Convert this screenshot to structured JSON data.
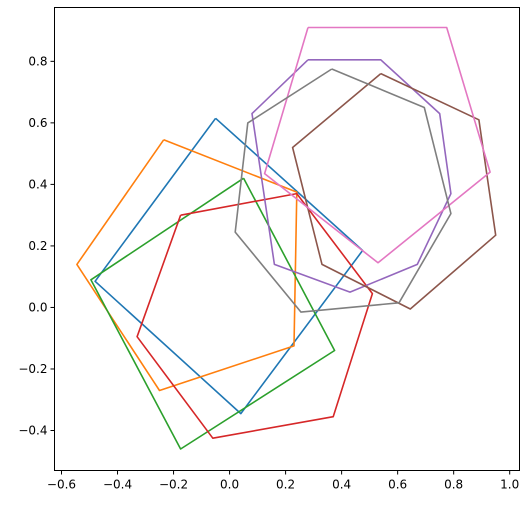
{
  "chart_data": {
    "type": "line",
    "title": "",
    "xlabel": "",
    "ylabel": "",
    "xlim": [
      -0.625,
      1.035
    ],
    "ylim": [
      -0.53,
      0.975
    ],
    "xticks": [
      -0.6,
      -0.4,
      -0.2,
      0.0,
      0.2,
      0.4,
      0.6,
      0.8,
      1.0
    ],
    "yticks": [
      -0.4,
      -0.2,
      0.0,
      0.2,
      0.4,
      0.6,
      0.8
    ],
    "xtick_labels": [
      "−0.6",
      "−0.4",
      "−0.2",
      "0.0",
      "0.2",
      "0.4",
      "0.6",
      "0.8",
      "1.0"
    ],
    "ytick_labels": [
      "−0.4",
      "−0.2",
      "0.0",
      "0.2",
      "0.4",
      "0.6",
      "0.8"
    ],
    "grid": false,
    "legend": "none",
    "series": [
      {
        "color": "#1f77b4",
        "points": [
          [
            -0.05,
            0.615
          ],
          [
            0.475,
            0.185
          ],
          [
            0.04,
            -0.345
          ],
          [
            -0.48,
            0.085
          ],
          [
            -0.05,
            0.615
          ]
        ]
      },
      {
        "color": "#ff7f0e",
        "points": [
          [
            -0.235,
            0.545
          ],
          [
            0.24,
            0.375
          ],
          [
            0.23,
            -0.125
          ],
          [
            -0.25,
            -0.27
          ],
          [
            -0.545,
            0.14
          ],
          [
            -0.235,
            0.545
          ]
        ]
      },
      {
        "color": "#2ca02c",
        "points": [
          [
            0.05,
            0.42
          ],
          [
            0.375,
            -0.14
          ],
          [
            -0.175,
            -0.46
          ],
          [
            -0.495,
            0.09
          ],
          [
            0.05,
            0.42
          ]
        ]
      },
      {
        "color": "#d62728",
        "points": [
          [
            -0.175,
            0.3
          ],
          [
            0.24,
            0.37
          ],
          [
            0.51,
            0.045
          ],
          [
            0.37,
            -0.355
          ],
          [
            -0.06,
            -0.425
          ],
          [
            -0.33,
            -0.095
          ],
          [
            -0.175,
            0.3
          ]
        ]
      },
      {
        "color": "#9467bd",
        "points": [
          [
            0.28,
            0.805
          ],
          [
            0.54,
            0.805
          ],
          [
            0.75,
            0.63
          ],
          [
            0.79,
            0.37
          ],
          [
            0.67,
            0.14
          ],
          [
            0.43,
            0.05
          ],
          [
            0.16,
            0.14
          ],
          [
            0.08,
            0.63
          ],
          [
            0.28,
            0.805
          ]
        ]
      },
      {
        "color": "#8c564b",
        "points": [
          [
            0.54,
            0.76
          ],
          [
            0.89,
            0.61
          ],
          [
            0.95,
            0.235
          ],
          [
            0.645,
            -0.005
          ],
          [
            0.33,
            0.14
          ],
          [
            0.225,
            0.52
          ],
          [
            0.54,
            0.76
          ]
        ]
      },
      {
        "color": "#e377c2",
        "points": [
          [
            0.28,
            0.91
          ],
          [
            0.775,
            0.91
          ],
          [
            0.93,
            0.44
          ],
          [
            0.53,
            0.145
          ],
          [
            0.125,
            0.435
          ],
          [
            0.28,
            0.91
          ]
        ]
      },
      {
        "color": "#7f7f7f",
        "points": [
          [
            0.365,
            0.775
          ],
          [
            0.695,
            0.65
          ],
          [
            0.79,
            0.305
          ],
          [
            0.605,
            0.015
          ],
          [
            0.255,
            -0.015
          ],
          [
            0.02,
            0.245
          ],
          [
            0.065,
            0.6
          ],
          [
            0.365,
            0.775
          ]
        ]
      }
    ]
  }
}
